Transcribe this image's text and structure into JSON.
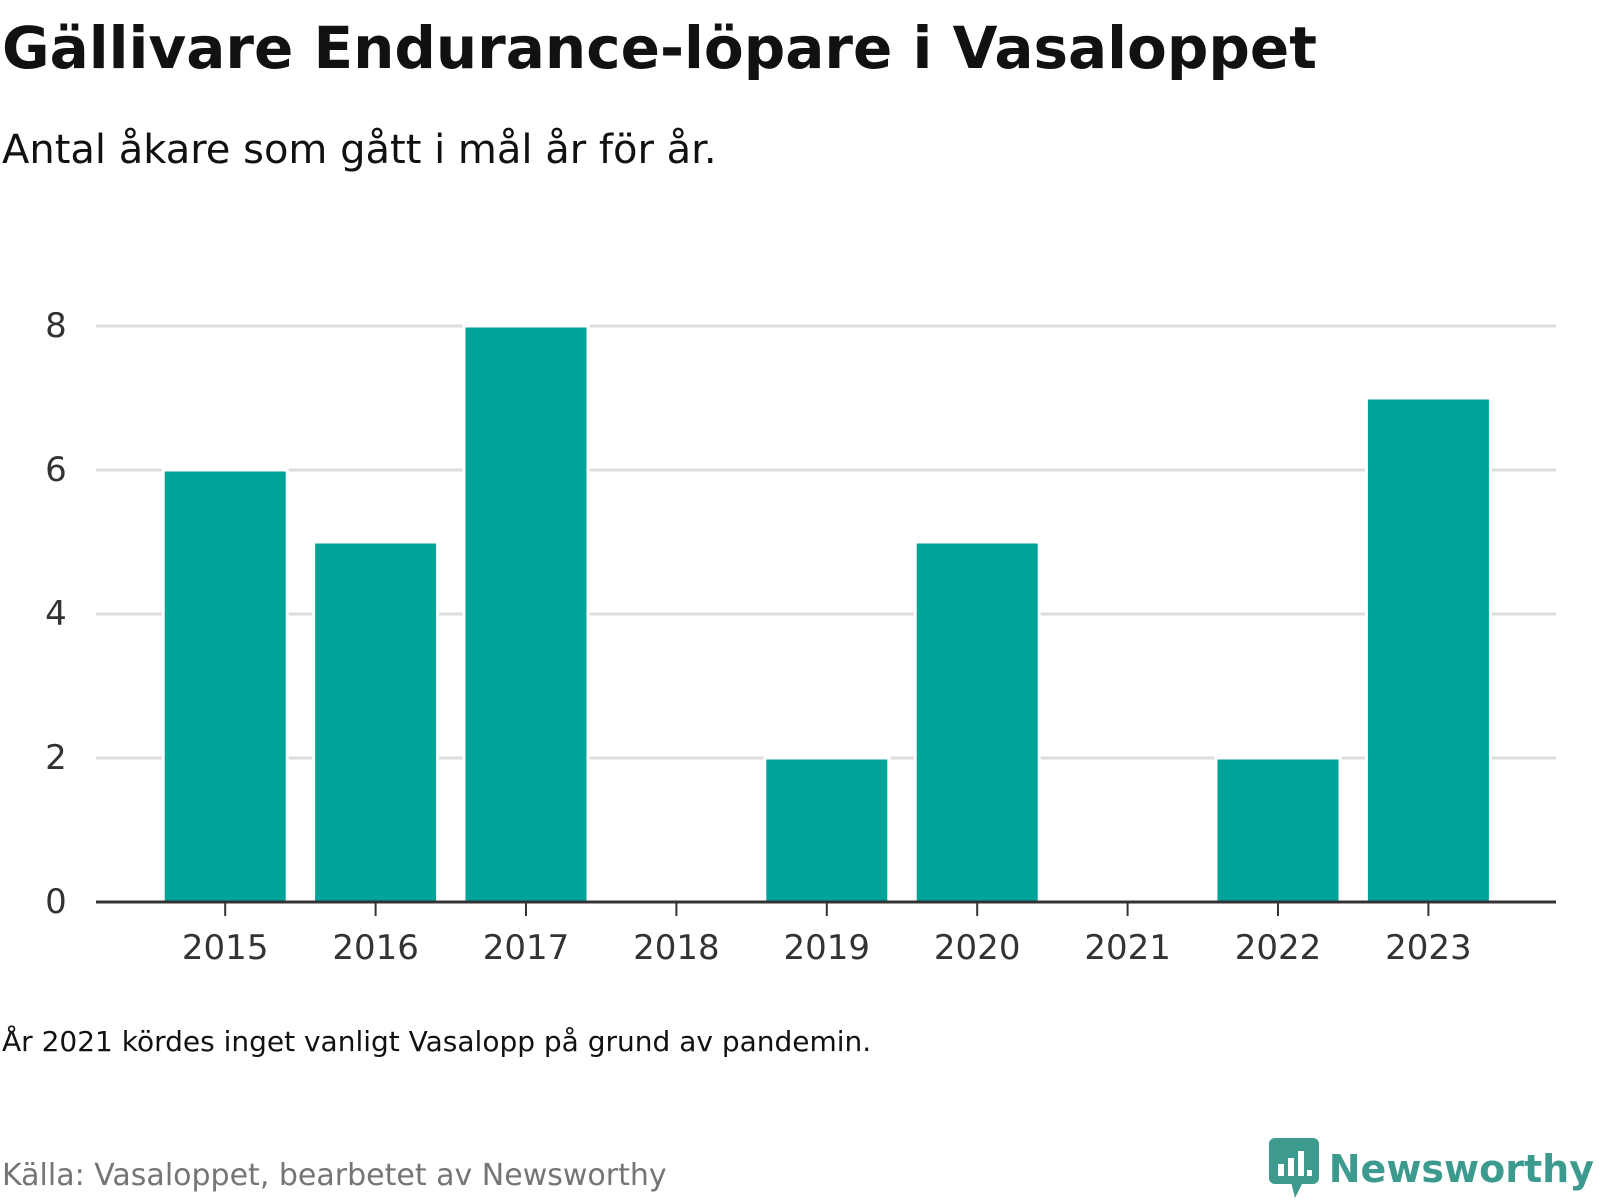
{
  "header": {
    "title": "Gällivare Endurance-löpare i Vasaloppet",
    "subtitle": "Antal åkare som gått i mål år för år."
  },
  "footer": {
    "note": "År 2021 kördes inget vanligt Vasalopp på grund av pandemin.",
    "source": "Källa: Vasaloppet, bearbetet av Newsworthy",
    "brand": "Newsworthy",
    "brand_icon": "bar-chart-speech-bubble-icon"
  },
  "colors": {
    "bar": "#00a39a",
    "grid": "#dedede",
    "axis": "#333333",
    "brand": "#3c9b8e"
  },
  "chart_data": {
    "type": "bar",
    "categories": [
      "2015",
      "2016",
      "2017",
      "2018",
      "2019",
      "2020",
      "2021",
      "2022",
      "2023"
    ],
    "values": [
      6,
      5,
      8,
      0,
      2,
      5,
      0,
      2,
      7
    ],
    "ylim": [
      0,
      8
    ],
    "yticks": [
      0,
      2,
      4,
      6,
      8
    ],
    "title": "Gällivare Endurance-löpare i Vasaloppet",
    "subtitle": "Antal åkare som gått i mål år för år.",
    "xlabel": "",
    "ylabel": "",
    "grid": true,
    "legend": "none"
  }
}
